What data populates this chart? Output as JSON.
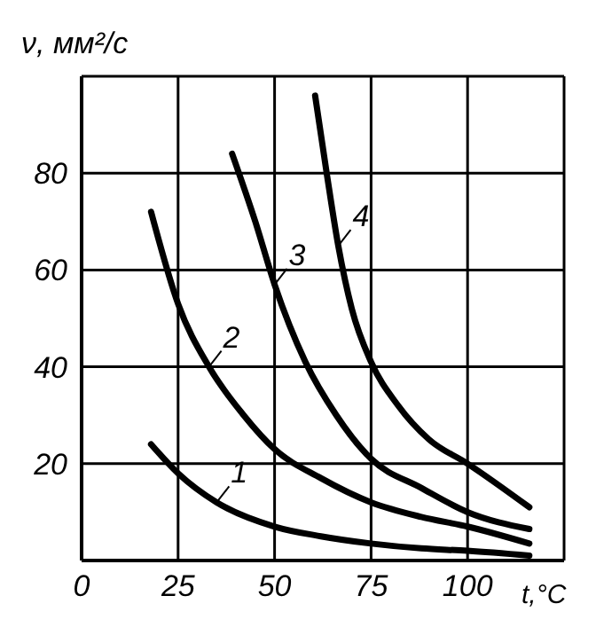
{
  "chart_data": {
    "type": "line",
    "xlabel": "t,°C",
    "ylabel": "ν, мм²/с",
    "xlim": [
      0,
      125
    ],
    "ylim": [
      0,
      100
    ],
    "xticks": [
      0,
      25,
      50,
      75,
      100
    ],
    "yticks": [
      20,
      40,
      60,
      80
    ],
    "grid": true,
    "marker": "none",
    "line_style": "solid",
    "series": [
      {
        "name": "1",
        "color": "#000000",
        "x": [
          18,
          25,
          35,
          50,
          62,
          75,
          88,
          100,
          116
        ],
        "values": [
          24,
          18,
          12,
          7,
          5,
          3.5,
          2.5,
          2,
          1
        ]
      },
      {
        "name": "2",
        "color": "#000000",
        "x": [
          18,
          25,
          33,
          42,
          50,
          62,
          75,
          88,
          100,
          116
        ],
        "values": [
          72,
          53,
          40,
          30,
          23,
          17,
          12,
          9,
          7,
          3.5
        ]
      },
      {
        "name": "3",
        "color": "#000000",
        "x": [
          39,
          45,
          50,
          58,
          66,
          75,
          88,
          100,
          116
        ],
        "values": [
          84,
          70,
          57,
          41,
          30,
          21,
          15,
          10,
          6.5
        ]
      },
      {
        "name": "4",
        "color": "#000000",
        "x": [
          60.5,
          63.5,
          66.5,
          70,
          75,
          82,
          90,
          100,
          116
        ],
        "values": [
          96,
          80,
          65,
          52,
          41,
          32,
          25,
          20,
          11
        ]
      }
    ]
  }
}
